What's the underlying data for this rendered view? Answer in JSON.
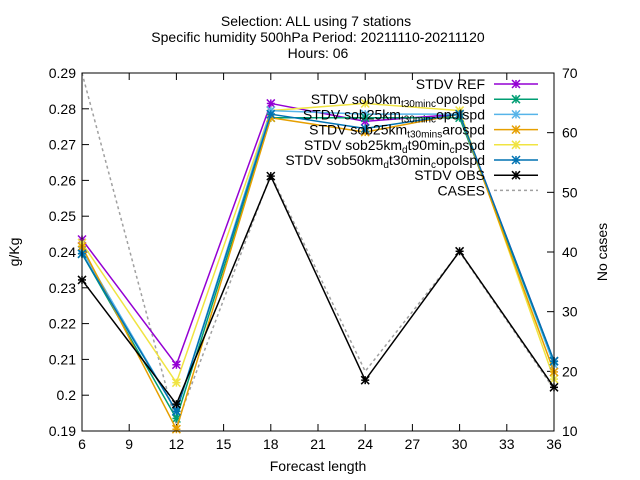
{
  "chart_data": {
    "type": "line",
    "title_lines": [
      "Selection: ALL using     7 stations",
      "Specific humidity 500hPa   Period: 20211110-20211120",
      "Hours: 06"
    ],
    "xlabel": "Forecast length",
    "ylabel": "g/Kg",
    "y2label": "No cases",
    "x": [
      6,
      12,
      18,
      24,
      30,
      36
    ],
    "xlim": [
      6,
      36
    ],
    "xticks": [
      "6",
      "9",
      "12",
      "15",
      "18",
      "21",
      "24",
      "27",
      "30",
      "33",
      "36"
    ],
    "ylim": [
      0.19,
      0.29
    ],
    "yticks": [
      "0.19",
      "0.2",
      "0.21",
      "0.22",
      "0.23",
      "0.24",
      "0.25",
      "0.26",
      "0.27",
      "0.28",
      "0.29"
    ],
    "y2lim": [
      10,
      70
    ],
    "y2ticks": [
      "10",
      "20",
      "30",
      "40",
      "50",
      "60",
      "70"
    ],
    "legend_position": "top-right",
    "series": [
      {
        "name": "STDV REF",
        "color": "#9400d3",
        "marker": "x-star",
        "values": [
          0.2435,
          0.2085,
          0.2815,
          0.2765,
          0.2785,
          0.2095
        ]
      },
      {
        "name": "STDV sob0km_t30min_c opolspd",
        "label_parts": [
          [
            "STDV sob0km",
            ""
          ],
          [
            "t30min",
            "sub"
          ],
          [
            "c",
            "sub"
          ],
          [
            "opolspd",
            ""
          ]
        ],
        "color": "#009e73",
        "marker": "x-star",
        "values": [
          0.2395,
          0.1935,
          0.2775,
          0.2775,
          0.2775,
          0.2095
        ]
      },
      {
        "name": "STDV sob25km_t30min_c opolspd",
        "label_parts": [
          [
            "STDV sob25km",
            ""
          ],
          [
            "t30min",
            "sub"
          ],
          [
            "c",
            "sub"
          ],
          [
            "opolspd",
            ""
          ]
        ],
        "color": "#56b4e9",
        "marker": "x-star",
        "values": [
          0.2405,
          0.1955,
          0.2795,
          0.2785,
          0.2785,
          0.2085
        ]
      },
      {
        "name": "STDV sob25km_t30min_s arospd",
        "label_parts": [
          [
            "STDV sob25km",
            ""
          ],
          [
            "t30min",
            "sub"
          ],
          [
            "s",
            "sub"
          ],
          [
            "arospd",
            ""
          ]
        ],
        "color": "#e69f00",
        "marker": "x-star",
        "values": [
          0.2415,
          0.1905,
          0.2775,
          0.2735,
          0.2785,
          0.2065
        ]
      },
      {
        "name": "STDV sob25km_d t90min_c pspd",
        "label_parts": [
          [
            "STDV sob25km",
            ""
          ],
          [
            "d",
            "sub"
          ],
          [
            "t90min",
            ""
          ],
          [
            "c",
            "sub"
          ],
          [
            "pspd",
            ""
          ]
        ],
        "color": "#f0e442",
        "marker": "x-star",
        "values": [
          0.2425,
          0.2035,
          0.2795,
          0.2815,
          0.2795,
          0.2045
        ]
      },
      {
        "name": "STDV sob50km_d t30min_c opolspd",
        "label_parts": [
          [
            "STDV sob50km",
            ""
          ],
          [
            "d",
            "sub"
          ],
          [
            "t30min",
            ""
          ],
          [
            "c",
            "sub"
          ],
          [
            "opolspd",
            ""
          ]
        ],
        "color": "#0072b2",
        "marker": "x-star",
        "values": [
          0.2395,
          0.1955,
          0.2785,
          0.2745,
          0.2785,
          0.2095
        ]
      },
      {
        "name": "STDV OBS",
        "color": "#000000",
        "marker": "x-star",
        "values": [
          0.2322,
          0.1975,
          0.2612,
          0.2042,
          0.2402,
          0.2022
        ]
      },
      {
        "name": "CASES",
        "color": "#a0a0a0",
        "marker": "none",
        "dashed": true,
        "axis": "y2",
        "values": [
          70,
          11,
          53,
          20,
          40,
          17
        ]
      }
    ]
  }
}
